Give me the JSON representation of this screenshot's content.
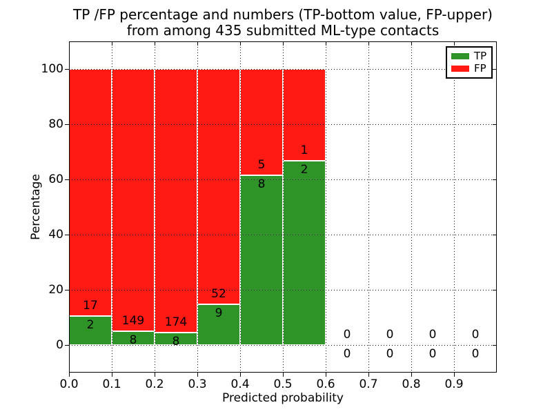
{
  "chart_data": {
    "type": "bar",
    "stacked": true,
    "title_lines": [
      "TP /FP percentage and numbers (TP-bottom value, FP-upper)",
      "from among 435 submitted ML-type contacts"
    ],
    "xlabel": "Predicted probability",
    "ylabel": "Percentage",
    "xlim": [
      0.0,
      1.0
    ],
    "ylim": [
      -10,
      110
    ],
    "xticks": [
      "0.0",
      "0.1",
      "0.2",
      "0.3",
      "0.4",
      "0.5",
      "0.6",
      "0.7",
      "0.8",
      "0.9"
    ],
    "yticks": [
      0,
      20,
      40,
      60,
      80,
      100
    ],
    "grid": true,
    "total_contacts": 435,
    "bins": [
      {
        "x_start": 0.0,
        "x_end": 0.1,
        "tp_count": 2,
        "fp_count": 17,
        "tp_pct": 10.53,
        "fp_pct": 89.47
      },
      {
        "x_start": 0.1,
        "x_end": 0.2,
        "tp_count": 8,
        "fp_count": 149,
        "tp_pct": 5.1,
        "fp_pct": 94.9
      },
      {
        "x_start": 0.2,
        "x_end": 0.3,
        "tp_count": 8,
        "fp_count": 174,
        "tp_pct": 4.4,
        "fp_pct": 95.6
      },
      {
        "x_start": 0.3,
        "x_end": 0.4,
        "tp_count": 9,
        "fp_count": 52,
        "tp_pct": 14.75,
        "fp_pct": 85.25
      },
      {
        "x_start": 0.4,
        "x_end": 0.5,
        "tp_count": 8,
        "fp_count": 5,
        "tp_pct": 61.54,
        "fp_pct": 38.46
      },
      {
        "x_start": 0.5,
        "x_end": 0.6,
        "tp_count": 2,
        "fp_count": 1,
        "tp_pct": 66.67,
        "fp_pct": 33.33
      },
      {
        "x_start": 0.6,
        "x_end": 0.7,
        "tp_count": 0,
        "fp_count": 0,
        "tp_pct": 0,
        "fp_pct": 0
      },
      {
        "x_start": 0.7,
        "x_end": 0.8,
        "tp_count": 0,
        "fp_count": 0,
        "tp_pct": 0,
        "fp_pct": 0
      },
      {
        "x_start": 0.8,
        "x_end": 0.9,
        "tp_count": 0,
        "fp_count": 0,
        "tp_pct": 0,
        "fp_pct": 0
      },
      {
        "x_start": 0.9,
        "x_end": 1.0,
        "tp_count": 0,
        "fp_count": 0,
        "tp_pct": 0,
        "fp_pct": 0
      }
    ],
    "legend": {
      "position": "upper right",
      "entries": [
        {
          "label": "TP",
          "color": "#2e9428"
        },
        {
          "label": "FP",
          "color": "#ff1a14"
        }
      ]
    },
    "colors": {
      "tp": "#2e9428",
      "fp": "#ff1a14",
      "bar_edge": "#ffffff",
      "grid": "#000000",
      "text": "#000000"
    }
  }
}
